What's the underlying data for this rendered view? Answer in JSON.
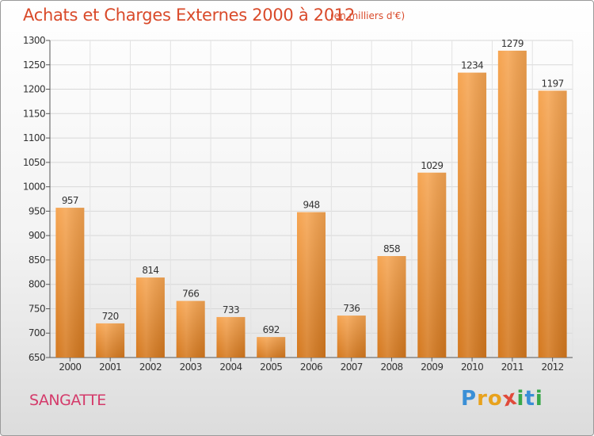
{
  "header": {
    "title": "Achats et Charges Externes 2000 à 2012",
    "subtitle": "(en milliers d'€)"
  },
  "footer": {
    "commune": "SANGATTE",
    "logo_letters": [
      "P",
      "r",
      "o",
      "x",
      "i",
      "t",
      "i"
    ],
    "logo_colors": [
      "#3a8fd6",
      "#e8a21d",
      "#e8a21d",
      "#e04a3a",
      "#39a84a",
      "#3a8fd6",
      "#39a84a"
    ]
  },
  "chart_data": {
    "type": "bar",
    "title": "Achats et Charges Externes 2000 à 2012",
    "subtitle": "(en milliers d'€)",
    "categories": [
      "2000",
      "2001",
      "2002",
      "2003",
      "2004",
      "2005",
      "2006",
      "2007",
      "2008",
      "2009",
      "2010",
      "2011",
      "2012"
    ],
    "values": [
      957,
      720,
      814,
      766,
      733,
      692,
      948,
      736,
      858,
      1029,
      1234,
      1279,
      1197
    ],
    "ylim": [
      650,
      1300
    ],
    "yticks": [
      650,
      700,
      750,
      800,
      850,
      900,
      950,
      1000,
      1050,
      1100,
      1150,
      1200,
      1250,
      1300
    ],
    "grid": true,
    "bar_color_top": "#f6a552",
    "bar_color_bottom": "#d4781e"
  }
}
